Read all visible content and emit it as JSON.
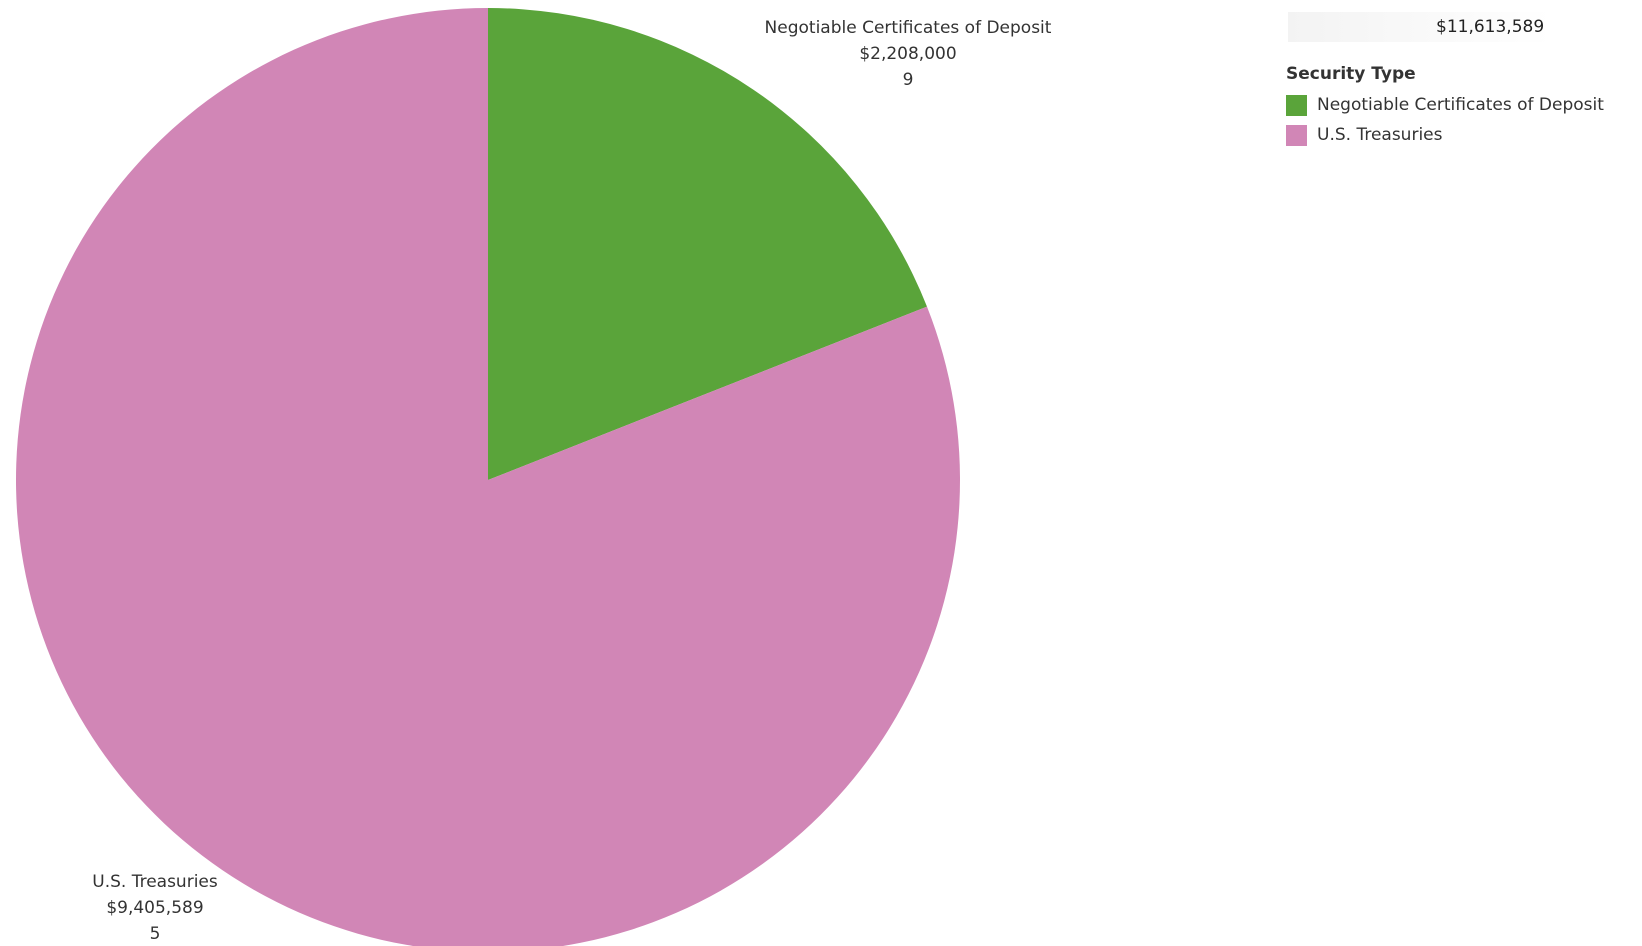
{
  "total": {
    "value": "$11,613,589"
  },
  "legend": {
    "title": "Security Type",
    "items": [
      {
        "label": "Negotiable Certificates of Deposit",
        "color": "#5aa43a"
      },
      {
        "label": "U.S. Treasuries",
        "color": "#d186b6"
      }
    ]
  },
  "chart_data": {
    "type": "pie",
    "title": "",
    "legend_title": "Security Type",
    "legend_position": "top-right",
    "total_label": "$11,613,589",
    "slices": [
      {
        "name": "Negotiable Certificates of Deposit",
        "value": 2208000,
        "value_label": "$2,208,000",
        "count_label": "9",
        "color": "#5aa43a"
      },
      {
        "name": "U.S. Treasuries",
        "value": 9405589,
        "value_label": "$9,405,589",
        "count_label": "5",
        "color": "#d186b6"
      }
    ]
  }
}
